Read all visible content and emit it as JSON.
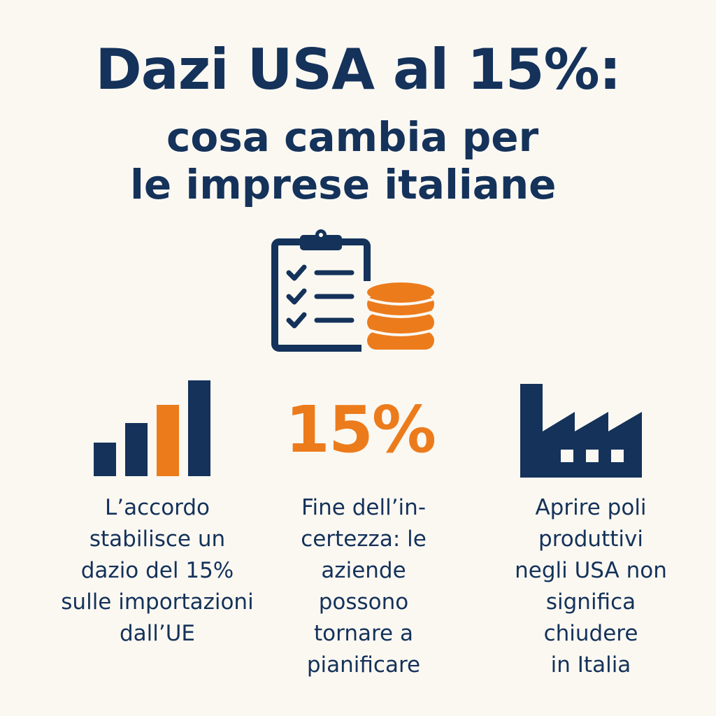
{
  "title": {
    "main": "Dazi USA al 15%:",
    "sub_line1": "cosa cambia per",
    "sub_line2": "le imprese italiane"
  },
  "colors": {
    "navy": "#14325a",
    "orange": "#ec7b1c",
    "background": "#fbf8f2"
  },
  "icons": {
    "hero": "clipboard-checklist-coins-icon",
    "col1": "bar-chart-icon",
    "col3": "factory-icon"
  },
  "columns": [
    {
      "lines": [
        "L’accordo",
        "stabilisce un",
        "dazio del 15%",
        "sulle importazioni",
        "dall’UE"
      ]
    },
    {
      "highlight": "15%",
      "lines": [
        "Fine dell’in-",
        "certezza: le",
        "aziende",
        "possono",
        "tornare a",
        "pianificare"
      ]
    },
    {
      "lines": [
        "Aprire poli",
        "produttivi",
        "negli USA non",
        "significa",
        "chiudere",
        "in Italia"
      ]
    }
  ]
}
